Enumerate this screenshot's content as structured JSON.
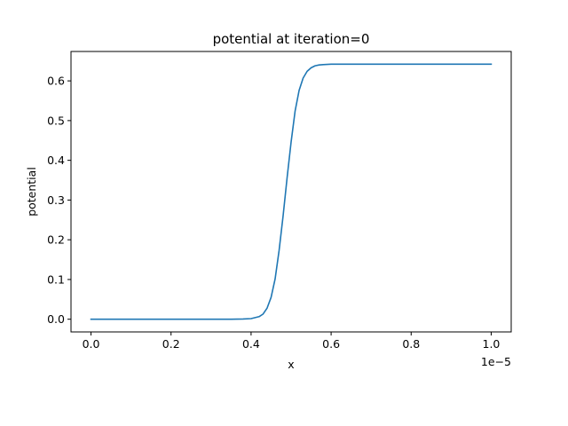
{
  "chart_data": {
    "type": "line",
    "title": "potential at iteration=0",
    "xlabel": "x",
    "ylabel": "potential",
    "x_offset_label": "1e−5",
    "xlim": [
      -0.05,
      1.05
    ],
    "ylim": [
      -0.032,
      0.674
    ],
    "x_ticks": [
      0.0,
      0.2,
      0.4,
      0.6,
      0.8,
      1.0
    ],
    "x_tick_labels": [
      "0.0",
      "0.2",
      "0.4",
      "0.6",
      "0.8",
      "1.0"
    ],
    "y_ticks": [
      0.0,
      0.1,
      0.2,
      0.3,
      0.4,
      0.5,
      0.6
    ],
    "y_tick_labels": [
      "0.0",
      "0.1",
      "0.2",
      "0.3",
      "0.4",
      "0.5",
      "0.6"
    ],
    "grid": false,
    "series": [
      {
        "color": "#1f77b4",
        "x": [
          0.0,
          0.05,
          0.1,
          0.15,
          0.2,
          0.25,
          0.3,
          0.35,
          0.38,
          0.4,
          0.42,
          0.43,
          0.44,
          0.45,
          0.46,
          0.47,
          0.48,
          0.49,
          0.5,
          0.51,
          0.52,
          0.53,
          0.54,
          0.55,
          0.56,
          0.57,
          0.58,
          0.6,
          0.62,
          0.65,
          0.7,
          0.75,
          0.8,
          0.85,
          0.9,
          0.95,
          1.0
        ],
        "y": [
          0.0,
          0.0,
          0.0,
          0.0,
          0.0,
          0.0,
          0.0,
          0.0,
          0.0005,
          0.0015,
          0.0065,
          0.013,
          0.028,
          0.055,
          0.101,
          0.173,
          0.26,
          0.356,
          0.446,
          0.524,
          0.576,
          0.607,
          0.624,
          0.633,
          0.638,
          0.64,
          0.641,
          0.642,
          0.642,
          0.642,
          0.642,
          0.642,
          0.642,
          0.642,
          0.642,
          0.642,
          0.642
        ]
      }
    ]
  }
}
